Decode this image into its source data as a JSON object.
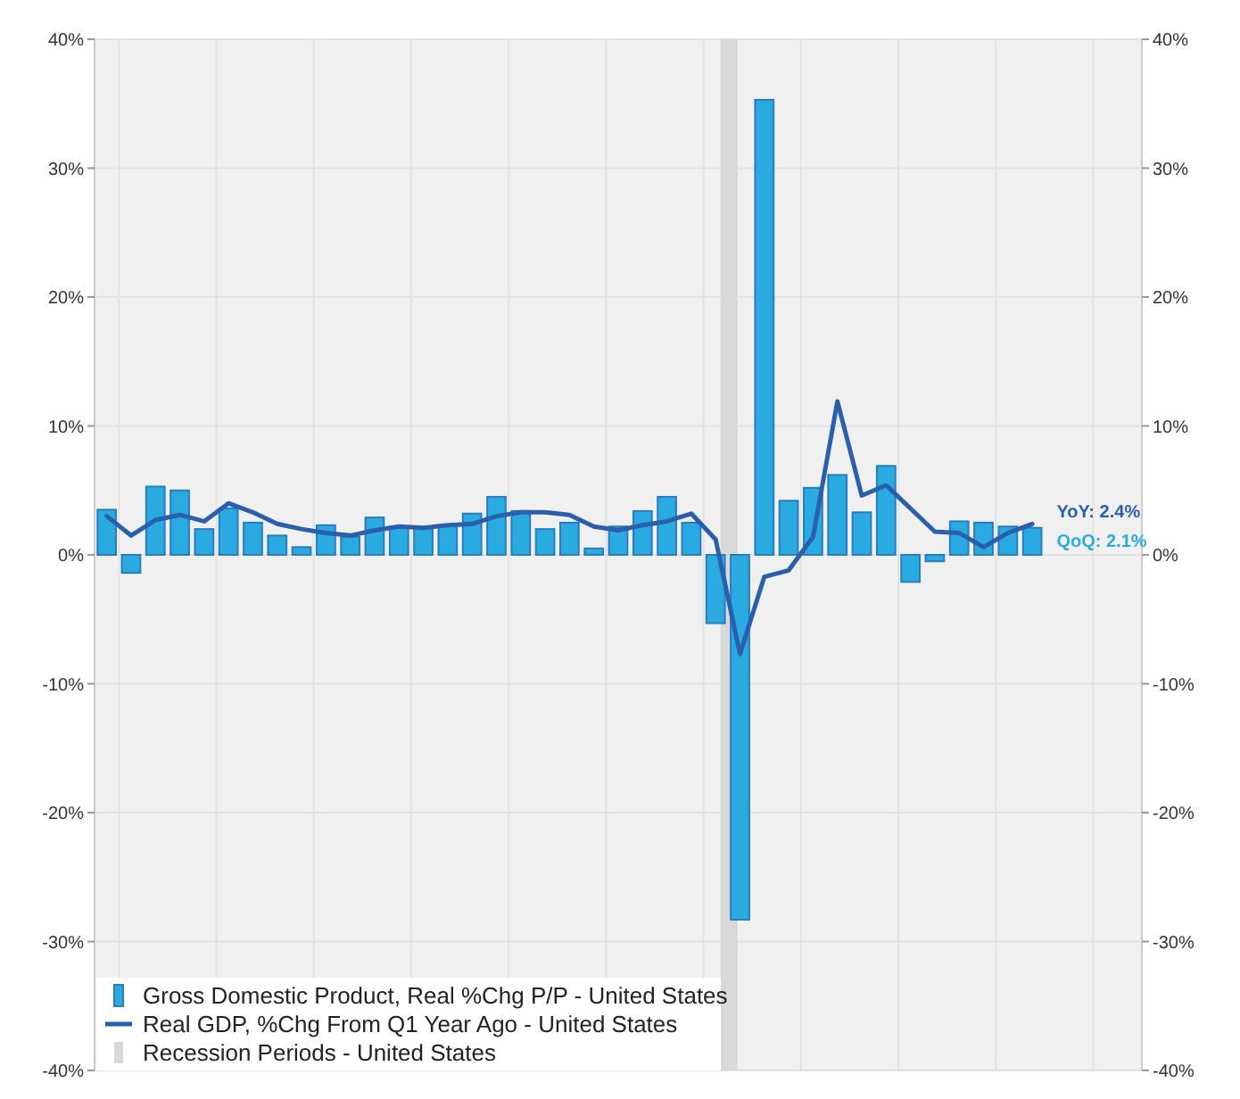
{
  "chart_data": {
    "type": "bar",
    "categories": [
      null,
      null,
      null,
      null,
      null,
      null,
      null,
      null,
      null,
      null,
      null,
      null,
      null,
      null,
      null,
      null,
      null,
      null,
      null,
      null,
      null,
      null,
      null,
      null,
      null,
      null,
      null,
      null,
      null,
      null,
      null,
      null,
      null,
      null,
      null,
      null,
      null,
      null,
      null
    ],
    "series": [
      {
        "name": "Gross Domestic Product, Real %Chg P/P - United States",
        "color": "#29abe2",
        "values": [
          3.5,
          -1.4,
          5.3,
          5.0,
          2.0,
          3.6,
          2.5,
          1.5,
          0.6,
          2.3,
          1.4,
          2.9,
          2.2,
          2.2,
          2.3,
          3.2,
          4.5,
          3.4,
          2.0,
          2.5,
          0.5,
          2.2,
          3.4,
          4.5,
          2.5,
          -5.3,
          -28.3,
          35.3,
          4.2,
          5.2,
          6.2,
          3.3,
          6.9,
          -2.1,
          -0.5,
          2.6,
          2.5,
          2.2,
          2.1
        ]
      },
      {
        "name": "Real GDP, %Chg From Q1 Year Ago - United States",
        "type": "line",
        "color": "#2b5fad",
        "values": [
          3.0,
          1.5,
          2.7,
          3.1,
          2.6,
          4.0,
          3.3,
          2.4,
          2.0,
          1.7,
          1.5,
          1.9,
          2.2,
          2.1,
          2.3,
          2.4,
          3.0,
          3.3,
          3.3,
          3.1,
          2.2,
          1.9,
          2.3,
          2.6,
          3.2,
          1.2,
          -7.7,
          -1.7,
          -1.2,
          1.4,
          11.9,
          4.6,
          5.4,
          3.6,
          1.8,
          1.7,
          0.6,
          1.7,
          2.4
        ]
      }
    ],
    "annotations": [
      "YoY: 2.4%",
      "QoQ: 2.1%",
      "Recession Periods - United States"
    ],
    "ylim": [
      -40,
      40
    ],
    "yticks": [
      {
        "value": -40,
        "label": "-40%"
      },
      {
        "value": -30,
        "label": "-30%"
      },
      {
        "value": -20,
        "label": "-20%"
      },
      {
        "value": -10,
        "label": "-10%"
      },
      {
        "value": 0,
        "label": "0%"
      },
      {
        "value": 10,
        "label": "10%"
      },
      {
        "value": 20,
        "label": "20%"
      },
      {
        "value": 30,
        "label": "30%"
      },
      {
        "value": 40,
        "label": "40%"
      }
    ],
    "y2lim": [
      -40,
      40
    ],
    "y2ticks": [
      {
        "value": -40,
        "label": "-40%"
      },
      {
        "value": -30,
        "label": "-30%"
      },
      {
        "value": -20,
        "label": "-20%"
      },
      {
        "value": -10,
        "label": "-10%"
      },
      {
        "value": 0,
        "label": "0%"
      },
      {
        "value": 10,
        "label": "10%"
      },
      {
        "value": 20,
        "label": "20%"
      },
      {
        "value": 30,
        "label": "30%"
      },
      {
        "value": 40,
        "label": "40%"
      }
    ],
    "grid": true,
    "legend": "bottom left"
  }
}
